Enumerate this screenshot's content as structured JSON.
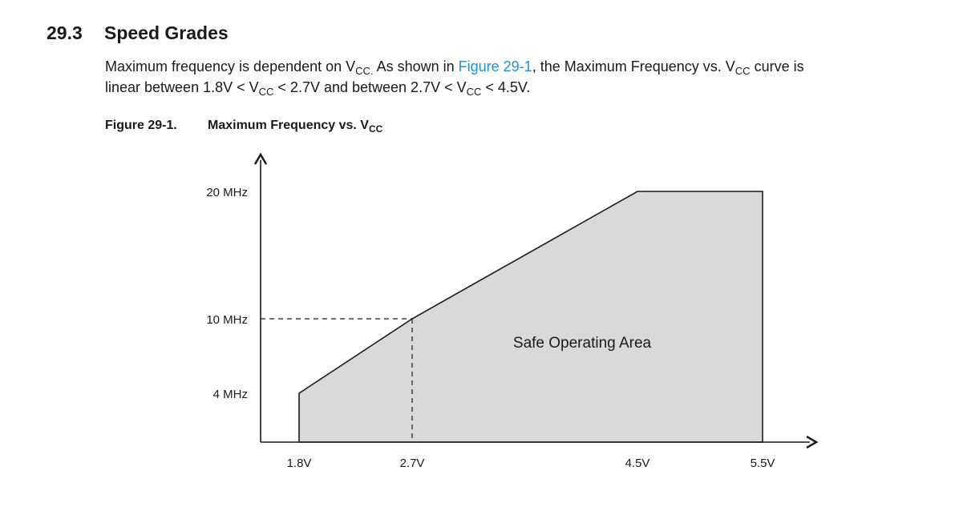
{
  "section": {
    "number": "29.3",
    "title": "Speed Grades"
  },
  "paragraph": {
    "line1_a": "Maximum frequency is dependent on V",
    "line1_sub1": "CC.",
    "line1_b": " As shown in ",
    "line1_link": "Figure 29-1",
    "line1_c": ", the Maximum Frequency vs. V",
    "line1_sub2": "CC",
    "line1_d": " curve is",
    "line2_a": "linear between 1.8V < V",
    "line2_sub1": "CC",
    "line2_b": " < 2.7V and between 2.7V < V",
    "line2_sub2": "CC",
    "line2_c": " < 4.5V."
  },
  "figure": {
    "number": "Figure 29-1.",
    "title": "Maximum Frequency vs. V",
    "title_sub": "CC"
  },
  "chart_data": {
    "type": "area",
    "x_ticks": [
      "1.8V",
      "2.7V",
      "4.5V",
      "5.5V"
    ],
    "y_ticks": [
      "20 MHz",
      "10 MHz",
      "4 MHz"
    ],
    "x": [
      1.8,
      2.7,
      4.5,
      5.5
    ],
    "y": [
      4,
      10,
      20,
      20
    ],
    "annotation": "Safe Operating Area",
    "fill_color": "#d9d9d9",
    "reference_point": {
      "x": 2.7,
      "y": 10
    }
  }
}
